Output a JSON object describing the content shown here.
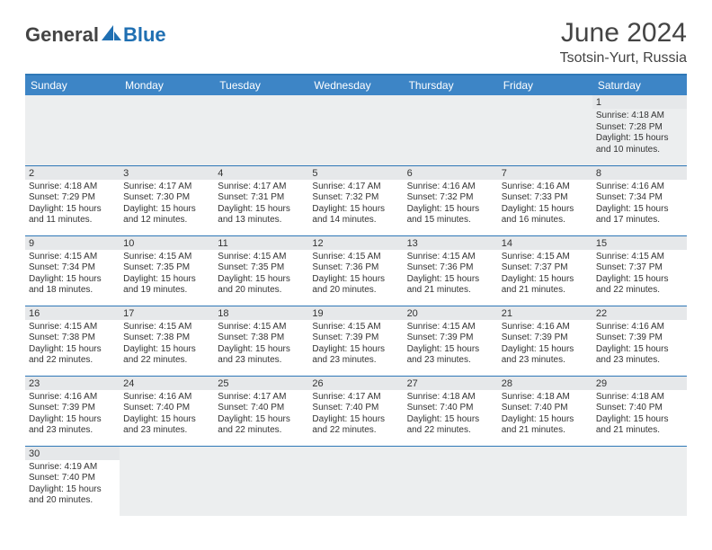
{
  "brand": {
    "part1": "General",
    "part2": "Blue"
  },
  "title": "June 2024",
  "location": "Tsotsin-Yurt, Russia",
  "colors": {
    "header_bg": "#3d85c6",
    "header_border": "#2f78b7",
    "daynum_bg": "#e6e8ea",
    "blank_bg": "#eceeef",
    "text": "#333333",
    "title_text": "#444444"
  },
  "weekdays": [
    "Sunday",
    "Monday",
    "Tuesday",
    "Wednesday",
    "Thursday",
    "Friday",
    "Saturday"
  ],
  "weeks": [
    [
      null,
      null,
      null,
      null,
      null,
      null,
      {
        "n": "1",
        "sunrise": "Sunrise: 4:18 AM",
        "sunset": "Sunset: 7:28 PM",
        "daylight": "Daylight: 15 hours and 10 minutes."
      }
    ],
    [
      {
        "n": "2",
        "sunrise": "Sunrise: 4:18 AM",
        "sunset": "Sunset: 7:29 PM",
        "daylight": "Daylight: 15 hours and 11 minutes."
      },
      {
        "n": "3",
        "sunrise": "Sunrise: 4:17 AM",
        "sunset": "Sunset: 7:30 PM",
        "daylight": "Daylight: 15 hours and 12 minutes."
      },
      {
        "n": "4",
        "sunrise": "Sunrise: 4:17 AM",
        "sunset": "Sunset: 7:31 PM",
        "daylight": "Daylight: 15 hours and 13 minutes."
      },
      {
        "n": "5",
        "sunrise": "Sunrise: 4:17 AM",
        "sunset": "Sunset: 7:32 PM",
        "daylight": "Daylight: 15 hours and 14 minutes."
      },
      {
        "n": "6",
        "sunrise": "Sunrise: 4:16 AM",
        "sunset": "Sunset: 7:32 PM",
        "daylight": "Daylight: 15 hours and 15 minutes."
      },
      {
        "n": "7",
        "sunrise": "Sunrise: 4:16 AM",
        "sunset": "Sunset: 7:33 PM",
        "daylight": "Daylight: 15 hours and 16 minutes."
      },
      {
        "n": "8",
        "sunrise": "Sunrise: 4:16 AM",
        "sunset": "Sunset: 7:34 PM",
        "daylight": "Daylight: 15 hours and 17 minutes."
      }
    ],
    [
      {
        "n": "9",
        "sunrise": "Sunrise: 4:15 AM",
        "sunset": "Sunset: 7:34 PM",
        "daylight": "Daylight: 15 hours and 18 minutes."
      },
      {
        "n": "10",
        "sunrise": "Sunrise: 4:15 AM",
        "sunset": "Sunset: 7:35 PM",
        "daylight": "Daylight: 15 hours and 19 minutes."
      },
      {
        "n": "11",
        "sunrise": "Sunrise: 4:15 AM",
        "sunset": "Sunset: 7:35 PM",
        "daylight": "Daylight: 15 hours and 20 minutes."
      },
      {
        "n": "12",
        "sunrise": "Sunrise: 4:15 AM",
        "sunset": "Sunset: 7:36 PM",
        "daylight": "Daylight: 15 hours and 20 minutes."
      },
      {
        "n": "13",
        "sunrise": "Sunrise: 4:15 AM",
        "sunset": "Sunset: 7:36 PM",
        "daylight": "Daylight: 15 hours and 21 minutes."
      },
      {
        "n": "14",
        "sunrise": "Sunrise: 4:15 AM",
        "sunset": "Sunset: 7:37 PM",
        "daylight": "Daylight: 15 hours and 21 minutes."
      },
      {
        "n": "15",
        "sunrise": "Sunrise: 4:15 AM",
        "sunset": "Sunset: 7:37 PM",
        "daylight": "Daylight: 15 hours and 22 minutes."
      }
    ],
    [
      {
        "n": "16",
        "sunrise": "Sunrise: 4:15 AM",
        "sunset": "Sunset: 7:38 PM",
        "daylight": "Daylight: 15 hours and 22 minutes."
      },
      {
        "n": "17",
        "sunrise": "Sunrise: 4:15 AM",
        "sunset": "Sunset: 7:38 PM",
        "daylight": "Daylight: 15 hours and 22 minutes."
      },
      {
        "n": "18",
        "sunrise": "Sunrise: 4:15 AM",
        "sunset": "Sunset: 7:38 PM",
        "daylight": "Daylight: 15 hours and 23 minutes."
      },
      {
        "n": "19",
        "sunrise": "Sunrise: 4:15 AM",
        "sunset": "Sunset: 7:39 PM",
        "daylight": "Daylight: 15 hours and 23 minutes."
      },
      {
        "n": "20",
        "sunrise": "Sunrise: 4:15 AM",
        "sunset": "Sunset: 7:39 PM",
        "daylight": "Daylight: 15 hours and 23 minutes."
      },
      {
        "n": "21",
        "sunrise": "Sunrise: 4:16 AM",
        "sunset": "Sunset: 7:39 PM",
        "daylight": "Daylight: 15 hours and 23 minutes."
      },
      {
        "n": "22",
        "sunrise": "Sunrise: 4:16 AM",
        "sunset": "Sunset: 7:39 PM",
        "daylight": "Daylight: 15 hours and 23 minutes."
      }
    ],
    [
      {
        "n": "23",
        "sunrise": "Sunrise: 4:16 AM",
        "sunset": "Sunset: 7:39 PM",
        "daylight": "Daylight: 15 hours and 23 minutes."
      },
      {
        "n": "24",
        "sunrise": "Sunrise: 4:16 AM",
        "sunset": "Sunset: 7:40 PM",
        "daylight": "Daylight: 15 hours and 23 minutes."
      },
      {
        "n": "25",
        "sunrise": "Sunrise: 4:17 AM",
        "sunset": "Sunset: 7:40 PM",
        "daylight": "Daylight: 15 hours and 22 minutes."
      },
      {
        "n": "26",
        "sunrise": "Sunrise: 4:17 AM",
        "sunset": "Sunset: 7:40 PM",
        "daylight": "Daylight: 15 hours and 22 minutes."
      },
      {
        "n": "27",
        "sunrise": "Sunrise: 4:18 AM",
        "sunset": "Sunset: 7:40 PM",
        "daylight": "Daylight: 15 hours and 22 minutes."
      },
      {
        "n": "28",
        "sunrise": "Sunrise: 4:18 AM",
        "sunset": "Sunset: 7:40 PM",
        "daylight": "Daylight: 15 hours and 21 minutes."
      },
      {
        "n": "29",
        "sunrise": "Sunrise: 4:18 AM",
        "sunset": "Sunset: 7:40 PM",
        "daylight": "Daylight: 15 hours and 21 minutes."
      }
    ],
    [
      {
        "n": "30",
        "sunrise": "Sunrise: 4:19 AM",
        "sunset": "Sunset: 7:40 PM",
        "daylight": "Daylight: 15 hours and 20 minutes."
      },
      null,
      null,
      null,
      null,
      null,
      null
    ]
  ]
}
